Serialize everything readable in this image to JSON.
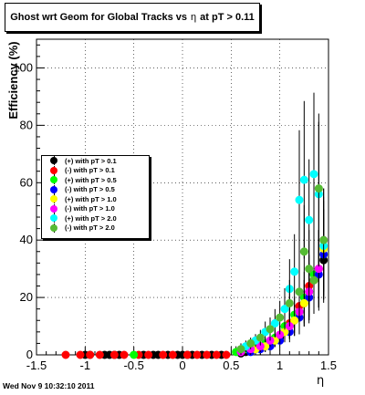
{
  "chart_data": {
    "type": "scatter",
    "title": "Ghost wrt Geom for Global Tracks vs",
    "title_symbol": "η",
    "title_suffix": "at pT > 0.11",
    "ylabel": "Efficiency (%)",
    "xlabel": "η",
    "xlim": [
      -1.5,
      1.5
    ],
    "ylim": [
      0,
      110
    ],
    "x_ticks": [
      -1.5,
      -1,
      -0.5,
      0,
      0.5,
      1,
      1.5
    ],
    "x_tick_labels": [
      "-1.5",
      "-1",
      "-0.5",
      "0",
      "0.5",
      "1",
      "1.5"
    ],
    "y_ticks": [
      0,
      20,
      40,
      60,
      80,
      100
    ],
    "y_tick_labels": [
      "0",
      "20",
      "40",
      "60",
      "80",
      "100"
    ],
    "grid": true,
    "legend_position": "left",
    "series": [
      {
        "name": "(+) with pT > 0.1",
        "color": "#000000",
        "x": [
          -1.0,
          -0.95,
          -0.8,
          -0.75,
          -0.7,
          -0.65,
          -0.4,
          -0.3,
          -0.25,
          -0.15,
          -0.05,
          0.0,
          0.05,
          0.1,
          0.2,
          0.3,
          0.4,
          0.6,
          0.65,
          0.7,
          0.75,
          0.8,
          0.85,
          0.9,
          0.95,
          1.0,
          1.05,
          1.1,
          1.15,
          1.2,
          1.25,
          1.3,
          1.35,
          1.4,
          1.45
        ],
        "y": [
          0,
          0,
          0,
          0,
          0,
          0,
          0,
          0,
          0,
          0,
          0,
          0,
          0,
          0,
          0,
          0,
          0,
          0.5,
          1,
          1.5,
          2,
          2.5,
          3,
          4,
          5,
          6,
          8,
          10,
          12,
          15,
          18,
          22,
          26,
          30,
          33
        ]
      },
      {
        "name": "(-) with pT > 0.1",
        "color": "#ff0000",
        "x": [
          -1.2,
          -1.05,
          -0.95,
          -0.85,
          -0.7,
          -0.6,
          -0.45,
          -0.35,
          -0.2,
          -0.1,
          0.05,
          0.15,
          0.25,
          0.35,
          0.45,
          0.6,
          0.7,
          0.8,
          0.9,
          1.0,
          1.1,
          1.2,
          1.3,
          1.4
        ],
        "y": [
          0,
          0,
          0,
          0,
          0,
          0,
          0,
          0,
          0,
          0,
          0,
          0,
          0,
          0,
          0,
          1,
          2,
          3,
          4,
          7,
          11,
          17,
          24,
          30
        ]
      },
      {
        "name": "(+) with pT > 0.5",
        "color": "#00ff00",
        "x": [
          -0.5,
          0.55,
          0.65,
          0.75,
          0.85,
          0.95,
          1.05,
          1.15,
          1.25,
          1.35,
          1.45
        ],
        "y": [
          0,
          1,
          2,
          3,
          4,
          6,
          10,
          14,
          20,
          28,
          35
        ]
      },
      {
        "name": "(-) with pT > 0.5",
        "color": "#0000ff",
        "x": [
          0.7,
          0.8,
          0.9,
          1.0,
          1.1,
          1.2,
          1.3,
          1.4,
          1.45
        ],
        "y": [
          1,
          2,
          3,
          5,
          8,
          13,
          20,
          28,
          35
        ]
      },
      {
        "name": "(+) with pT > 1.0",
        "color": "#ffff00",
        "x": [
          0.75,
          0.85,
          0.95,
          1.05,
          1.15,
          1.25,
          1.35,
          1.45
        ],
        "y": [
          2,
          3,
          5,
          8,
          12,
          18,
          26,
          37
        ]
      },
      {
        "name": "(-) with pT > 1.0",
        "color": "#ff00ff",
        "x": [
          0.6,
          0.7,
          0.8,
          0.9,
          1.0,
          1.1,
          1.2,
          1.3,
          1.4,
          1.45
        ],
        "y": [
          1,
          2,
          3,
          5,
          7,
          10,
          15,
          22,
          30,
          40
        ]
      },
      {
        "name": "(+) with pT > 2.0",
        "color": "#00ffff",
        "x": [
          0.65,
          0.75,
          0.85,
          0.95,
          1.05,
          1.1,
          1.15,
          1.2,
          1.25,
          1.3,
          1.35,
          1.4,
          1.45
        ],
        "y": [
          3,
          5,
          8,
          11,
          16,
          23,
          29,
          54,
          61,
          47,
          63,
          56,
          38
        ]
      },
      {
        "name": "(-) with pT > 2.0",
        "color": "#55bb33",
        "x": [
          0.6,
          0.7,
          0.8,
          0.9,
          1.0,
          1.1,
          1.2,
          1.25,
          1.3,
          1.35,
          1.4,
          1.45
        ],
        "y": [
          2,
          4,
          6,
          9,
          13,
          18,
          22,
          36,
          30,
          26,
          58,
          40
        ]
      }
    ]
  },
  "footer": "Wed Nov  9 10:32:10 2011"
}
